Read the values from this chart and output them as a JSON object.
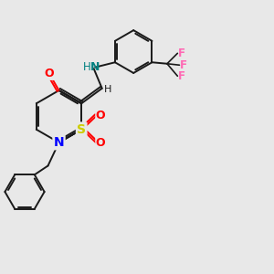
{
  "bg_color": "#e8e8e8",
  "bond_color": "#1a1a1a",
  "atom_colors": {
    "O": "#ff0000",
    "N": "#0000ff",
    "S": "#cccc00",
    "F": "#ff69b4",
    "NH_color": "#008080"
  },
  "figsize": [
    3.0,
    3.0
  ],
  "dpi": 100
}
